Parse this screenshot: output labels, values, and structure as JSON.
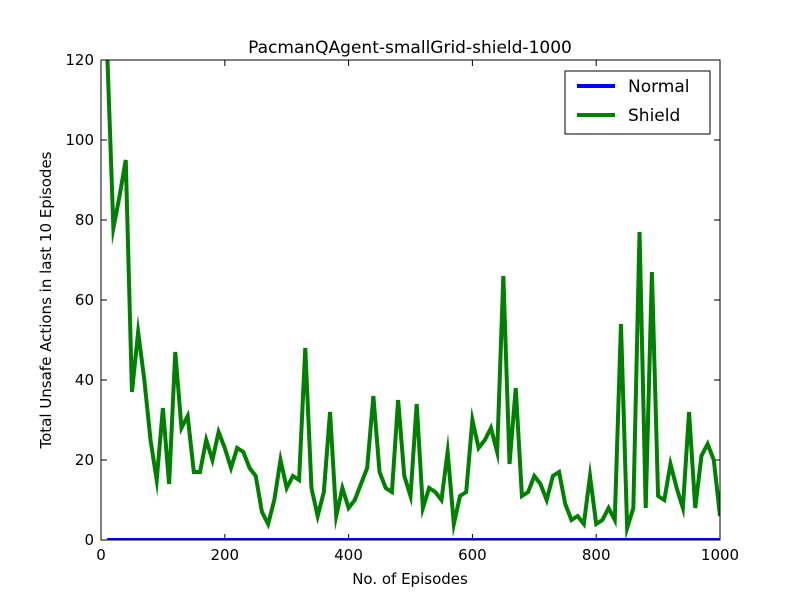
{
  "chart_data": {
    "type": "line",
    "title": "PacmanQAgent-smallGrid-shield-1000",
    "xlabel": "No. of Episodes",
    "ylabel": "Total Unsafe Actions in last 10 Episodes",
    "xlim": [
      0,
      1000
    ],
    "ylim": [
      0,
      120
    ],
    "x_ticks": [
      0,
      200,
      400,
      600,
      800,
      1000
    ],
    "y_ticks": [
      0,
      20,
      40,
      60,
      80,
      100,
      120
    ],
    "grid": false,
    "legend_position": "upper right",
    "legend_entries": [
      "Normal",
      "Shield"
    ],
    "x": [
      10,
      20,
      30,
      40,
      50,
      60,
      70,
      80,
      90,
      100,
      110,
      120,
      130,
      140,
      150,
      160,
      170,
      180,
      190,
      200,
      210,
      220,
      230,
      240,
      250,
      260,
      270,
      280,
      290,
      300,
      310,
      320,
      330,
      340,
      350,
      360,
      370,
      380,
      390,
      400,
      410,
      420,
      430,
      440,
      450,
      460,
      470,
      480,
      490,
      500,
      510,
      520,
      530,
      540,
      550,
      560,
      570,
      580,
      590,
      600,
      610,
      620,
      630,
      640,
      650,
      660,
      670,
      680,
      690,
      700,
      710,
      720,
      730,
      740,
      750,
      760,
      770,
      780,
      790,
      800,
      810,
      820,
      830,
      840,
      850,
      860,
      870,
      880,
      890,
      900,
      910,
      920,
      930,
      940,
      950,
      960,
      970,
      980,
      990,
      1000
    ],
    "series": [
      {
        "name": "Normal",
        "color": "#0000ff",
        "values": [
          0,
          0,
          0,
          0,
          0,
          0,
          0,
          0,
          0,
          0,
          0,
          0,
          0,
          0,
          0,
          0,
          0,
          0,
          0,
          0,
          0,
          0,
          0,
          0,
          0,
          0,
          0,
          0,
          0,
          0,
          0,
          0,
          0,
          0,
          0,
          0,
          0,
          0,
          0,
          0,
          0,
          0,
          0,
          0,
          0,
          0,
          0,
          0,
          0,
          0,
          0,
          0,
          0,
          0,
          0,
          0,
          0,
          0,
          0,
          0,
          0,
          0,
          0,
          0,
          0,
          0,
          0,
          0,
          0,
          0,
          0,
          0,
          0,
          0,
          0,
          0,
          0,
          0,
          0,
          0,
          0,
          0,
          0,
          0,
          0,
          0,
          0,
          0,
          0,
          0,
          0,
          0,
          0,
          0,
          0,
          0,
          0,
          0,
          0,
          0
        ]
      },
      {
        "name": "Shield",
        "color": "#008000",
        "values": [
          122,
          78,
          86,
          95,
          37,
          52,
          40,
          25,
          15,
          33,
          14,
          47,
          28,
          31,
          17,
          17,
          25,
          20,
          27,
          23,
          18,
          23,
          22,
          18,
          16,
          7,
          4,
          10,
          20,
          13,
          16,
          15,
          48,
          13,
          6,
          12,
          32,
          6,
          13,
          8,
          10,
          14,
          18,
          36,
          17,
          13,
          12,
          35,
          16,
          11,
          34,
          8,
          13,
          12,
          10,
          22,
          4,
          11,
          12,
          30,
          23,
          25,
          28,
          22,
          66,
          19,
          38,
          11,
          12,
          16,
          14,
          10,
          16,
          17,
          9,
          5,
          6,
          4,
          16,
          4,
          5,
          8,
          5,
          54,
          3,
          8,
          77,
          8,
          67,
          11,
          10,
          19,
          13,
          8,
          32,
          8,
          21,
          24,
          20,
          6
        ]
      }
    ]
  }
}
